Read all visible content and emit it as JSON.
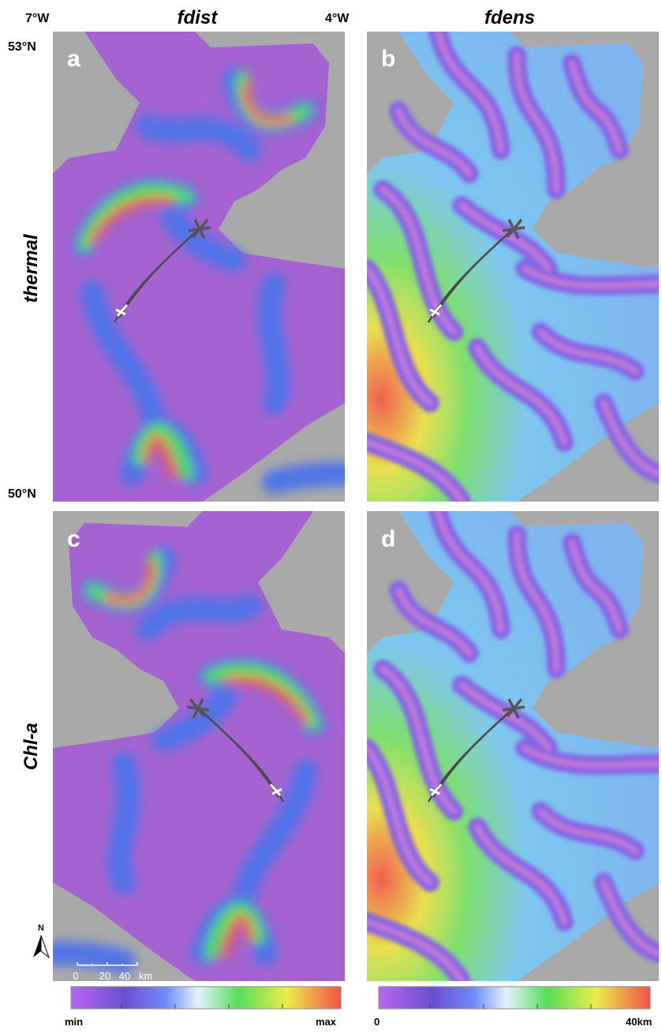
{
  "header": {
    "columns": [
      "fdist",
      "fdens"
    ],
    "rows": [
      "thermal",
      "Chl-a"
    ]
  },
  "axes": {
    "lon": [
      "7°W",
      "4°W"
    ],
    "lat": [
      "53°N",
      "50°N"
    ]
  },
  "panels": [
    "a",
    "b",
    "c",
    "d"
  ],
  "north": "N",
  "scale_bar": {
    "ticks": [
      0,
      20,
      40
    ],
    "unit": "km"
  },
  "colorbars": [
    {
      "min": "min",
      "max": "max"
    },
    {
      "min": "0",
      "max": "40km"
    }
  ]
}
